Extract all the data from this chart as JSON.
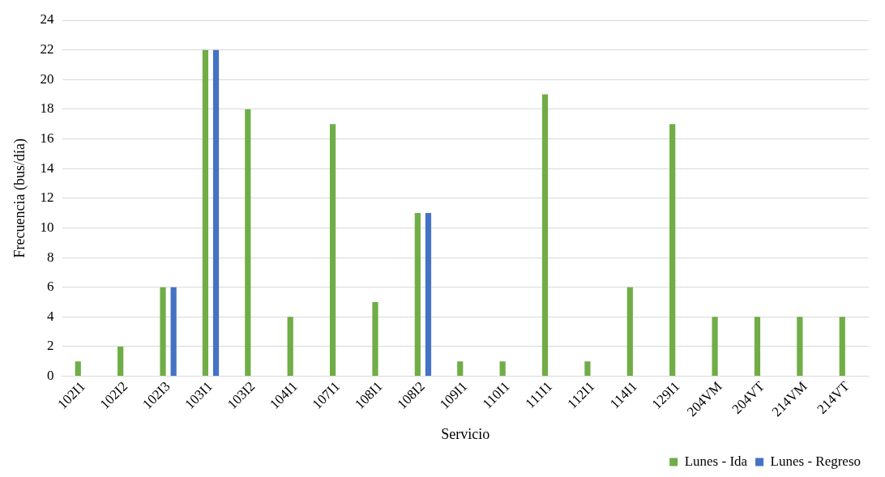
{
  "chart_data": {
    "type": "bar",
    "xlabel": "Servicio",
    "ylabel": "Frecuencia (bus/día)",
    "categories": [
      "102I1",
      "102I2",
      "102I3",
      "103I1",
      "103I2",
      "104I1",
      "107I1",
      "108I1",
      "108I2",
      "109I1",
      "110I1",
      "111I1",
      "112I1",
      "114I1",
      "129I1",
      "204VM",
      "204VT",
      "214VM",
      "214VT"
    ],
    "series": [
      {
        "name": "Lunes - Ida",
        "color": "#70ad47",
        "values": [
          1,
          2,
          6,
          22,
          18,
          4,
          17,
          5,
          11,
          1,
          1,
          19,
          1,
          6,
          17,
          4,
          4,
          4,
          4
        ]
      },
      {
        "name": "Lunes - Regreso",
        "color": "#4472c4",
        "values": [
          null,
          null,
          6,
          22,
          null,
          null,
          null,
          null,
          11,
          null,
          null,
          null,
          null,
          null,
          null,
          null,
          null,
          null,
          null
        ]
      }
    ],
    "ylim": [
      0,
      24
    ],
    "yticks": [
      0,
      2,
      4,
      6,
      8,
      10,
      12,
      14,
      16,
      18,
      20,
      22,
      24
    ],
    "grid": "y",
    "legend": "bottom right"
  }
}
